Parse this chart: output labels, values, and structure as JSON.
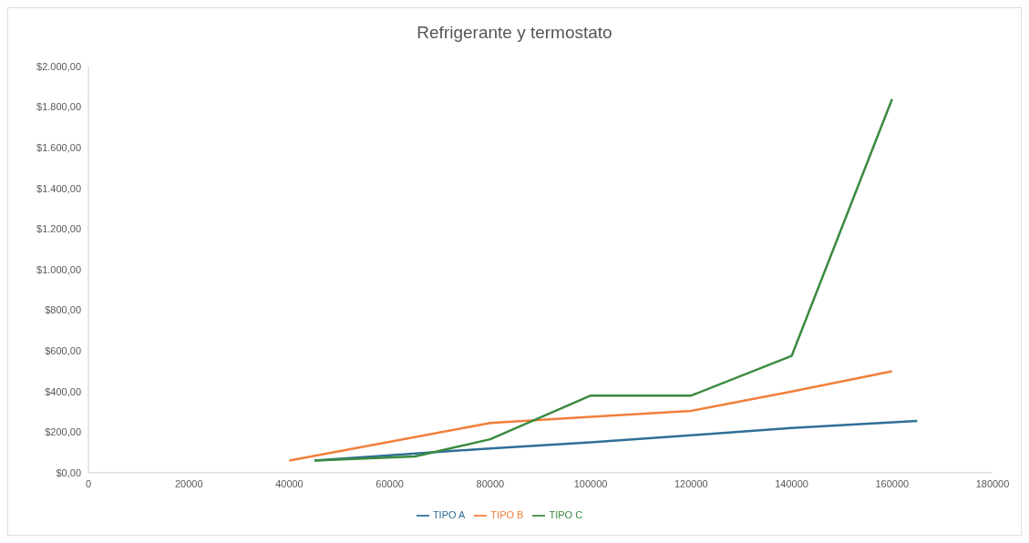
{
  "chart_data": {
    "type": "line",
    "title": "Refrigerante y termostato",
    "xlim": [
      0,
      180000
    ],
    "xticks": [
      0,
      20000,
      40000,
      60000,
      80000,
      100000,
      120000,
      140000,
      160000,
      180000
    ],
    "ylim": [
      0,
      2000
    ],
    "yticks": [
      {
        "value": 0,
        "label": "$0,00"
      },
      {
        "value": 200,
        "label": "$200,00"
      },
      {
        "value": 400,
        "label": "$400,00"
      },
      {
        "value": 600,
        "label": "$600,00"
      },
      {
        "value": 800,
        "label": "$800,00"
      },
      {
        "value": 1000,
        "label": "$1.000,00"
      },
      {
        "value": 1200,
        "label": "$1.200,00"
      },
      {
        "value": 1400,
        "label": "$1.400,00"
      },
      {
        "value": 1600,
        "label": "$1.600,00"
      },
      {
        "value": 1800,
        "label": "$1.800,00"
      },
      {
        "value": 2000,
        "label": "$2.000,00"
      }
    ],
    "grid": false,
    "legend": "bottom",
    "marker": "none",
    "line_style": "solid",
    "series": [
      {
        "name": "TIPO A",
        "color": "#2e6f96",
        "x": [
          45000,
          80000,
          100000,
          120000,
          140000,
          165000
        ],
        "values": [
          60,
          120,
          150,
          185,
          220,
          255
        ]
      },
      {
        "name": "TIPO B",
        "color": "#f07f3c",
        "x": [
          40000,
          80000,
          100000,
          120000,
          140000,
          160000
        ],
        "values": [
          60,
          245,
          275,
          305,
          400,
          500
        ]
      },
      {
        "name": "TIPO C",
        "color": "#3a8a3f",
        "x": [
          45000,
          65000,
          80000,
          100000,
          120000,
          140000,
          160000
        ],
        "values": [
          60,
          80,
          165,
          380,
          380,
          575,
          1840
        ]
      }
    ]
  }
}
